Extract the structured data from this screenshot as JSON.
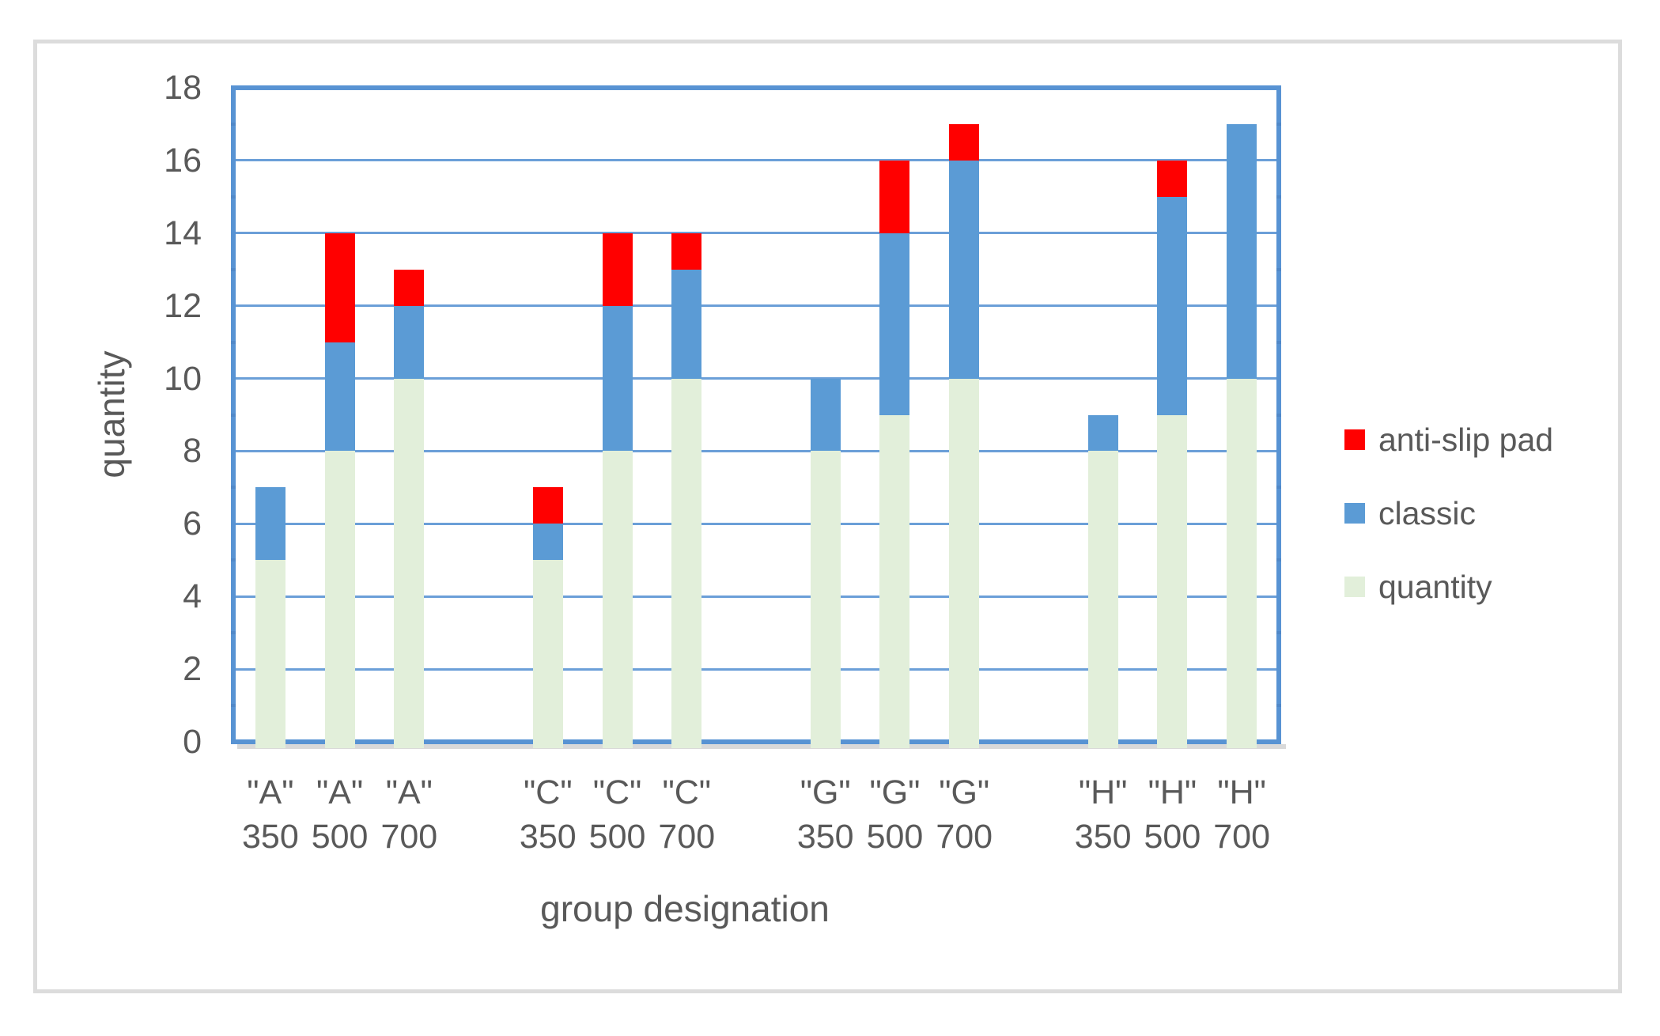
{
  "chart_data": {
    "type": "bar",
    "stacked": true,
    "title": "",
    "xlabel": "group designation",
    "ylabel": "quantity",
    "ylim": [
      0,
      18
    ],
    "ytick_step": 2,
    "yticks": [
      0,
      2,
      4,
      6,
      8,
      10,
      12,
      14,
      16,
      18
    ],
    "grid": true,
    "legend_position": "right",
    "categories": [
      "\"A\" 350",
      "\"A\" 500",
      "\"A\" 700",
      "\"C\" 350",
      "\"C\" 500",
      "\"C\" 700",
      "\"G\" 350",
      "\"G\" 500",
      "\"G\" 700",
      "\"H\" 350",
      "\"H\" 500",
      "\"H\" 700"
    ],
    "category_labels": [
      {
        "group": "\"A\"",
        "size": "350"
      },
      {
        "group": "\"A\"",
        "size": "500"
      },
      {
        "group": "\"A\"",
        "size": "700"
      },
      {
        "group": "\"C\"",
        "size": "350"
      },
      {
        "group": "\"C\"",
        "size": "500"
      },
      {
        "group": "\"C\"",
        "size": "700"
      },
      {
        "group": "\"G\"",
        "size": "350"
      },
      {
        "group": "\"G\"",
        "size": "500"
      },
      {
        "group": "\"G\"",
        "size": "700"
      },
      {
        "group": "\"H\"",
        "size": "350"
      },
      {
        "group": "\"H\"",
        "size": "500"
      },
      {
        "group": "\"H\"",
        "size": "700"
      }
    ],
    "series": [
      {
        "name": "quantity",
        "color": "#E2EFDA",
        "values": [
          5,
          8,
          10,
          5,
          8,
          10,
          8,
          9,
          10,
          8,
          9,
          10
        ]
      },
      {
        "name": "classic",
        "color": "#5B9BD5",
        "values": [
          2,
          3,
          2,
          1,
          4,
          3,
          2,
          5,
          6,
          1,
          6,
          7
        ]
      },
      {
        "name": "anti-slip pad",
        "color": "#FF0000",
        "values": [
          0,
          3,
          1,
          1,
          2,
          1,
          0,
          2,
          1,
          0,
          1,
          0
        ]
      }
    ],
    "legend_entries": [
      {
        "label": "anti-slip pad",
        "color": "#FF0000"
      },
      {
        "label": "classic",
        "color": "#5B9BD5"
      },
      {
        "label": "quantity",
        "color": "#E2EFDA"
      }
    ]
  },
  "colors": {
    "plot_border": "#5893D3",
    "gridline": "#6B9FD8",
    "axis_text": "#595959",
    "outer_border": "#DCDCDC",
    "shadow": "#D9D9D9",
    "background": "#FFFFFF"
  }
}
